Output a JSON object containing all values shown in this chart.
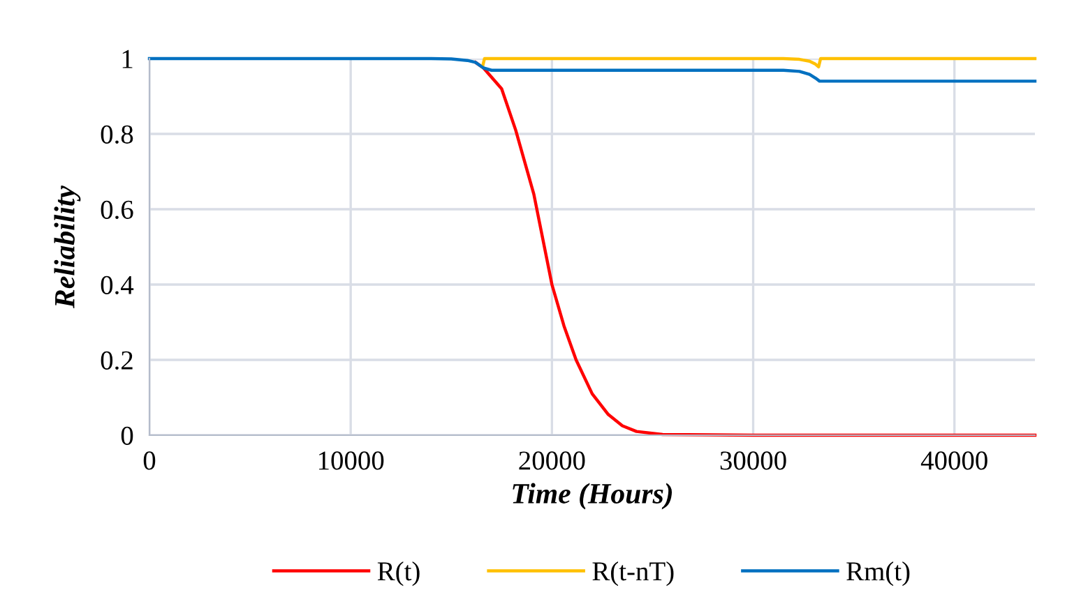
{
  "chart_data": {
    "type": "line",
    "xlabel": "Time (Hours)",
    "ylabel": "Reliability",
    "xlim": [
      0,
      44000
    ],
    "ylim": [
      0,
      1
    ],
    "xticks": [
      0,
      10000,
      20000,
      30000,
      40000
    ],
    "yticks": [
      0,
      0.2,
      0.4,
      0.6,
      0.8,
      1
    ],
    "grid": true,
    "legend": "bottom",
    "marker": "none",
    "line_style": "solid",
    "series": [
      {
        "name": "R(t)",
        "color": "#ff0000",
        "x": [
          16200,
          16600,
          17500,
          18200,
          19100,
          20000,
          20600,
          21200,
          22000,
          22800,
          23500,
          24200,
          25500,
          30000,
          44000
        ],
        "values": [
          0.99,
          0.975,
          0.92,
          0.81,
          0.64,
          0.4,
          0.29,
          0.2,
          0.11,
          0.055,
          0.025,
          0.01,
          0.002,
          0,
          0
        ]
      },
      {
        "name": "R(t-nT)",
        "color": "#ffc000",
        "x": [
          16550,
          16650,
          31500,
          32300,
          32800,
          33100,
          33250,
          33350,
          44000
        ],
        "values": [
          0.978,
          1,
          1,
          0.998,
          0.993,
          0.985,
          0.978,
          1,
          1
        ]
      },
      {
        "name": "Rm(t)",
        "color": "#0070c0",
        "x": [
          0,
          14000,
          15000,
          15800,
          16200,
          16600,
          17000,
          31500,
          32300,
          32800,
          33100,
          33300,
          44000
        ],
        "values": [
          1,
          1,
          0.999,
          0.995,
          0.99,
          0.975,
          0.969,
          0.969,
          0.966,
          0.958,
          0.948,
          0.94,
          0.94
        ]
      }
    ]
  }
}
